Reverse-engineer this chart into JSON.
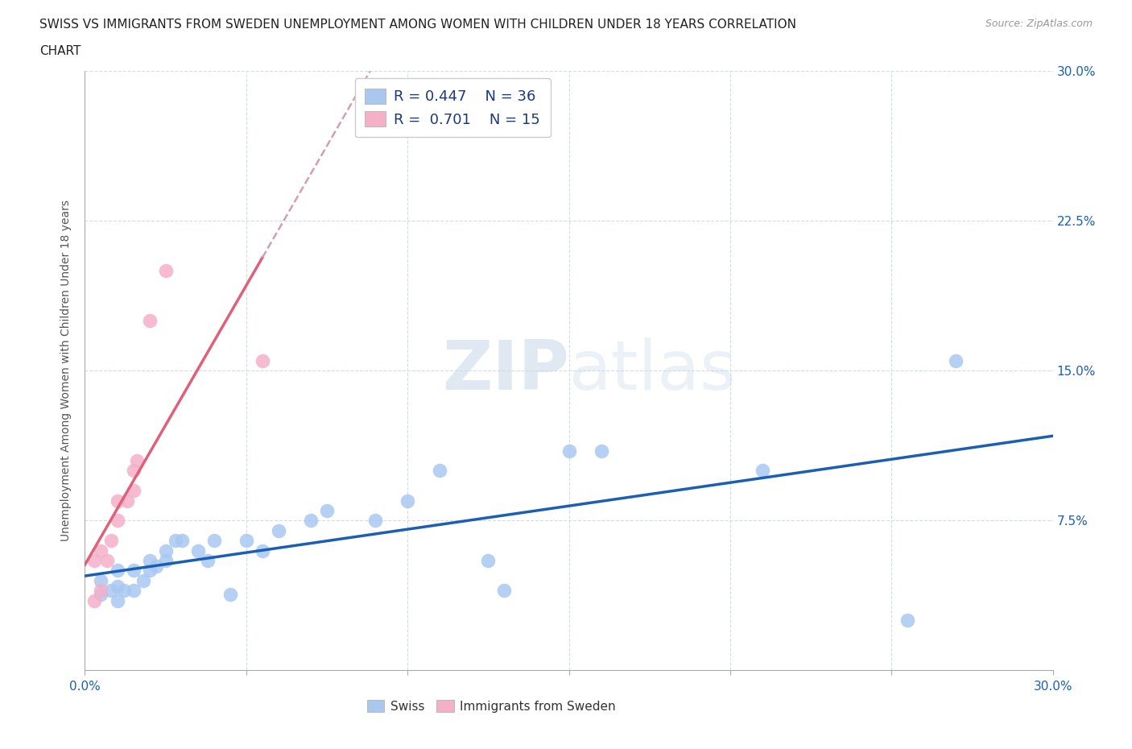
{
  "title_line1": "SWISS VS IMMIGRANTS FROM SWEDEN UNEMPLOYMENT AMONG WOMEN WITH CHILDREN UNDER 18 YEARS CORRELATION",
  "title_line2": "CHART",
  "source": "Source: ZipAtlas.com",
  "ylabel": "Unemployment Among Women with Children Under 18 years",
  "watermark": "ZIPatlas",
  "xmin": 0.0,
  "xmax": 0.3,
  "ymin": 0.0,
  "ymax": 0.3,
  "swiss_R": 0.447,
  "swiss_N": 36,
  "immigrant_R": 0.701,
  "immigrant_N": 15,
  "swiss_color": "#a8c8f0",
  "immigrant_color": "#f5b0c8",
  "trendline_swiss_color": "#1a5fb4",
  "trendline_immigrant_color": "#e0607a",
  "trendline_dashed_color": "#d0a0b0",
  "swiss_x": [
    0.005,
    0.005,
    0.008,
    0.01,
    0.01,
    0.01,
    0.012,
    0.015,
    0.015,
    0.018,
    0.02,
    0.02,
    0.022,
    0.025,
    0.025,
    0.028,
    0.03,
    0.035,
    0.038,
    0.04,
    0.045,
    0.05,
    0.055,
    0.06,
    0.07,
    0.075,
    0.09,
    0.1,
    0.11,
    0.125,
    0.13,
    0.15,
    0.16,
    0.21,
    0.255,
    0.27
  ],
  "swiss_y": [
    0.038,
    0.045,
    0.04,
    0.035,
    0.042,
    0.05,
    0.04,
    0.04,
    0.05,
    0.045,
    0.05,
    0.055,
    0.052,
    0.055,
    0.06,
    0.065,
    0.065,
    0.06,
    0.055,
    0.065,
    0.038,
    0.065,
    0.06,
    0.07,
    0.075,
    0.08,
    0.075,
    0.085,
    0.1,
    0.055,
    0.04,
    0.11,
    0.11,
    0.1,
    0.025,
    0.155
  ],
  "immigrant_x": [
    0.003,
    0.003,
    0.005,
    0.005,
    0.007,
    0.008,
    0.01,
    0.01,
    0.013,
    0.015,
    0.015,
    0.016,
    0.02,
    0.025,
    0.055
  ],
  "immigrant_y": [
    0.035,
    0.055,
    0.04,
    0.06,
    0.055,
    0.065,
    0.075,
    0.085,
    0.085,
    0.09,
    0.1,
    0.105,
    0.175,
    0.2,
    0.155
  ],
  "legend_text_color": "#1a3a7a",
  "axis_label_color": "#555555",
  "background_color": "#ffffff",
  "grid_color": "#d4dce8",
  "tick_label_color": "#1a5fb4",
  "bottom_legend_color": "#333333"
}
